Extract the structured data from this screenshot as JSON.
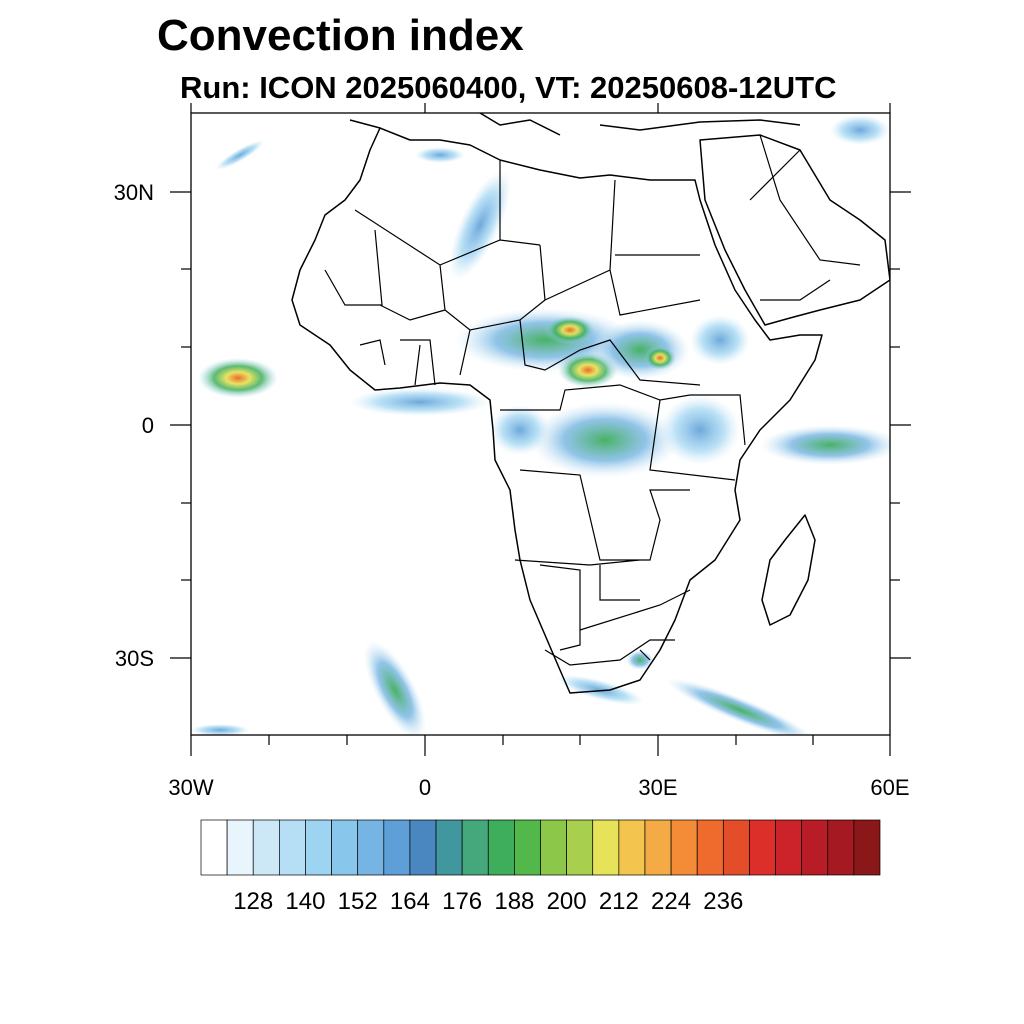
{
  "title": "Convection index",
  "subtitle": "Run: ICON 2025060400,  VT: 20250608-12UTC",
  "lat_labels": [
    "30N",
    "0",
    "30S"
  ],
  "lon_labels": [
    "30W",
    "0",
    "30E",
    "60E"
  ],
  "colorbar": {
    "labels": [
      "128",
      "140",
      "152",
      "164",
      "176",
      "188",
      "200",
      "212",
      "224",
      "236"
    ],
    "colors": [
      "#ffffff",
      "#e8f5fc",
      "#cce8f6",
      "#b6def5",
      "#9dd4f2",
      "#88c6ec",
      "#76b5e3",
      "#5d9fd6",
      "#4a86c0",
      "#41979e",
      "#45a87d",
      "#3fae5c",
      "#52b84a",
      "#8dc74a",
      "#a8cf4e",
      "#e6e25a",
      "#f3c54e",
      "#f4ab45",
      "#f38b37",
      "#ee6a2d",
      "#e44d2a",
      "#dc2f2a",
      "#cc2229",
      "#b81c27",
      "#a51a22",
      "#8b1818"
    ]
  }
}
